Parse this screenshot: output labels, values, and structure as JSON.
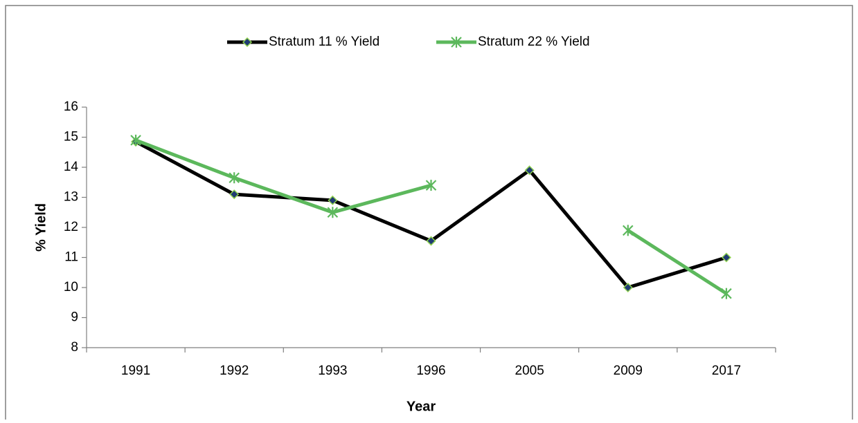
{
  "chart_data": {
    "type": "line",
    "x_label": "Year",
    "y_label": "% Yield",
    "categories": [
      "1991",
      "1992",
      "1993",
      "1996",
      "2005",
      "2009",
      "2017"
    ],
    "series": [
      {
        "name": "Stratum 11 % Yield",
        "color": "#000000",
        "marker": "diamond",
        "marker_color": "#1f3b73",
        "marker_edge": "#8fd14f",
        "values": [
          14.85,
          13.1,
          12.9,
          11.55,
          13.9,
          10,
          11
        ]
      },
      {
        "name": "Stratum 22 % Yield",
        "color": "#5cb85c",
        "marker": "star",
        "values": [
          14.9,
          13.65,
          12.5,
          13.4,
          null,
          11.9,
          9.8
        ]
      }
    ],
    "ylim": [
      8,
      16
    ],
    "yticks": [
      8,
      9,
      10,
      11,
      12,
      13,
      14,
      15,
      16
    ],
    "grid": false,
    "legend": "top"
  }
}
